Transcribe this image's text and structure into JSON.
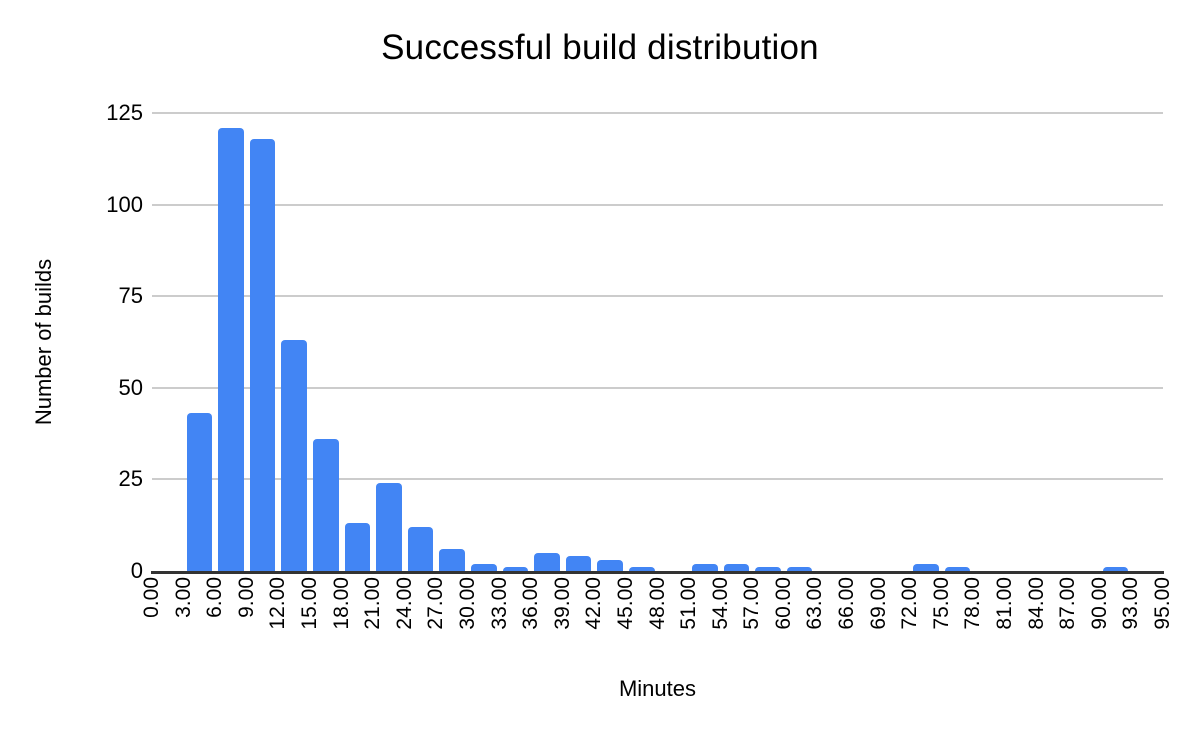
{
  "chart_data": {
    "type": "bar",
    "chart_kind": "histogram",
    "title": "Successful build distribution",
    "xlabel": "Minutes",
    "ylabel": "Number of builds",
    "ylim": [
      0,
      125
    ],
    "yticks": [
      0,
      25,
      50,
      75,
      100,
      125
    ],
    "grid": true,
    "legend": "none",
    "x_boundary_labels": [
      "0.00",
      "3.00",
      "6.00",
      "9.00",
      "12.00",
      "15.00",
      "18.00",
      "21.00",
      "24.00",
      "27.00",
      "30.00",
      "33.00",
      "36.00",
      "39.00",
      "42.00",
      "45.00",
      "48.00",
      "51.00",
      "54.00",
      "57.00",
      "60.00",
      "63.00",
      "66.00",
      "69.00",
      "72.00",
      "75.00",
      "78.00",
      "81.00",
      "84.00",
      "87.00",
      "90.00",
      "93.00",
      "95.00"
    ],
    "values": [
      0,
      43,
      121,
      118,
      63,
      36,
      13,
      24,
      12,
      6,
      2,
      1,
      5,
      4,
      3,
      1,
      0,
      2,
      2,
      1,
      1,
      0,
      0,
      0,
      2,
      1,
      0,
      0,
      0,
      0,
      1,
      0
    ],
    "colors": {
      "bar": "#4285f4",
      "gridline": "#cccccc",
      "baseline": "#333333",
      "text": "#000000",
      "background": "#ffffff"
    }
  }
}
